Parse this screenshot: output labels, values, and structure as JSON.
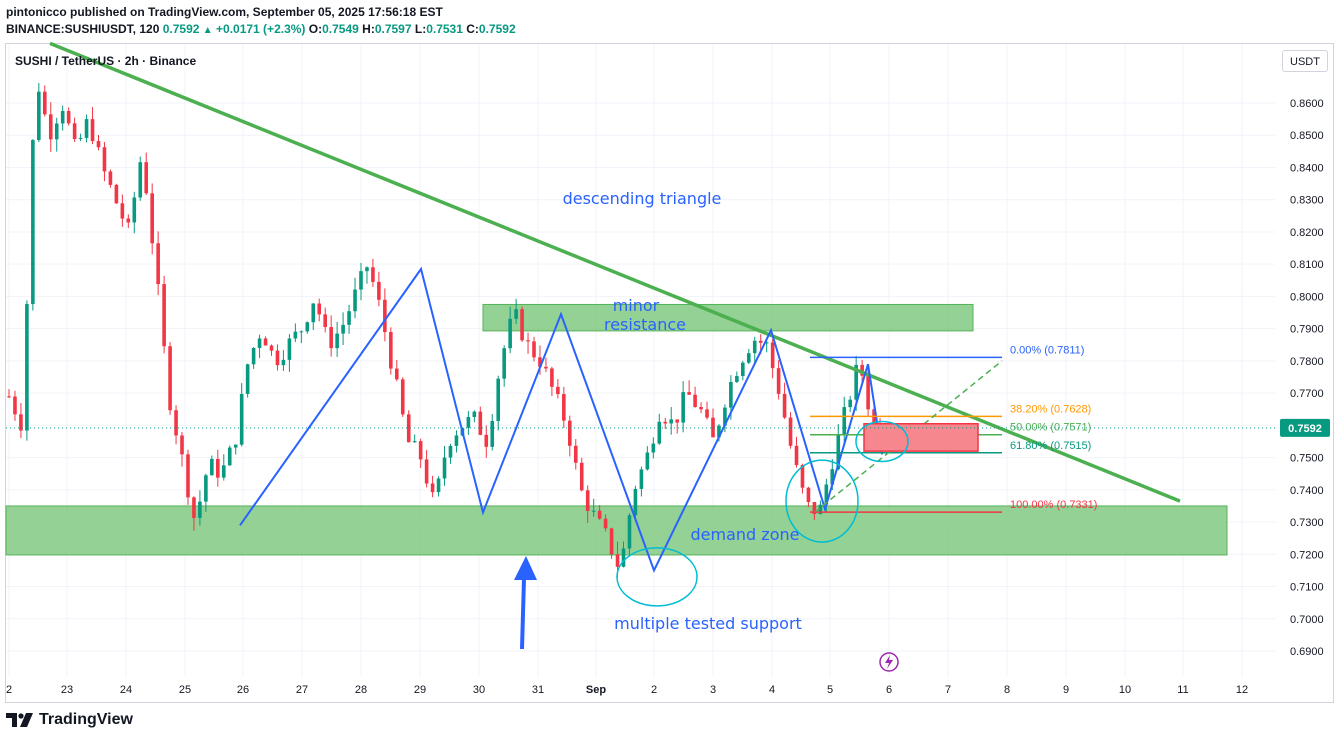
{
  "header": {
    "publish_line": "pintonicco published on TradingView.com, September 05, 2025 17:56:18 EST",
    "symbol": "BINANCE:SUSHIUSDT, 120",
    "last": "0.7592",
    "change": "+0.0171 (+2.3%)",
    "o_label": "O:",
    "o_value": "0.7549",
    "h_label": "H:",
    "h_value": "0.7597",
    "l_label": "L:",
    "l_value": "0.7531",
    "c_label": "C:",
    "c_value": "0.7592"
  },
  "pane_title": "SUSHI / TetherUS · 2h · Binance",
  "currency_button": "USDT",
  "footer_brand": "TradingView",
  "colors": {
    "up": "#089981",
    "down": "#f23645",
    "trendline": "#4caf50",
    "zone_fill": "#8fcf8f",
    "zigzag": "#2962ff",
    "circles": "#00bcd4",
    "text_blue": "#2962ff"
  },
  "chart_data": {
    "type": "candlestick",
    "title": "SUSHI / TetherUS · 2h · Binance",
    "y_ticks": [
      "0.8600",
      "0.8500",
      "0.8400",
      "0.8300",
      "0.8200",
      "0.8100",
      "0.8000",
      "0.7900",
      "0.7800",
      "0.7700",
      "0.7600",
      "0.7500",
      "0.7400",
      "0.7300",
      "0.7200",
      "0.7100",
      "0.7000",
      "0.6900"
    ],
    "x_ticks": [
      "2",
      "23",
      "24",
      "25",
      "26",
      "27",
      "28",
      "29",
      "30",
      "31",
      "Sep",
      "2",
      "3",
      "4",
      "5",
      "6",
      "7",
      "8",
      "9",
      "10",
      "11",
      "12"
    ],
    "last_price_label": "0.7592",
    "annotations": [
      "descending triangle",
      "minor",
      "resistance",
      "demand zone",
      "multiple tested support"
    ],
    "fib_levels": [
      {
        "label": "0.00% (0.7811)",
        "price": 0.7811,
        "color": "#2962ff"
      },
      {
        "label": "38.20% (0.7628)",
        "price": 0.7628,
        "color": "#ff9800"
      },
      {
        "label": "50.00% (0.7571)",
        "price": 0.7571,
        "color": "#4caf50"
      },
      {
        "label": "61.80% (0.7515)",
        "price": 0.7515,
        "color": "#089981"
      },
      {
        "label": "100.00% (0.7331)",
        "price": 0.7331,
        "color": "#f23645"
      }
    ],
    "zones": [
      {
        "name": "demand zone",
        "price_low": 0.7198,
        "price_high": 0.735
      },
      {
        "name": "minor resistance",
        "price_low": 0.7893,
        "price_high": 0.7975
      }
    ],
    "trendline": {
      "start": {
        "day": "22",
        "price": 0.8785
      },
      "end": {
        "day": "11",
        "price": 0.7365
      }
    },
    "zigzag_prices": [
      0.729,
      0.8085,
      0.733,
      0.7945,
      0.715,
      0.7895,
      0.734,
      0.779,
      0.751
    ],
    "candle_path": [
      0.769,
      0.76,
      0.87,
      0.85,
      0.86,
      0.845,
      0.855,
      0.84,
      0.83,
      0.82,
      0.845,
      0.81,
      0.77,
      0.75,
      0.73,
      0.748,
      0.745,
      0.755,
      0.78,
      0.79,
      0.78,
      0.785,
      0.79,
      0.8,
      0.785,
      0.79,
      0.8,
      0.81,
      0.795,
      0.775,
      0.755,
      0.75,
      0.735,
      0.755,
      0.76,
      0.762,
      0.755,
      0.78,
      0.795,
      0.785,
      0.78,
      0.77,
      0.76,
      0.74,
      0.732,
      0.725,
      0.715,
      0.74,
      0.75,
      0.765,
      0.76,
      0.77,
      0.765,
      0.755,
      0.77,
      0.78,
      0.787,
      0.785,
      0.77,
      0.75,
      0.735,
      0.733,
      0.75,
      0.765,
      0.78,
      0.76,
      0.7592
    ]
  }
}
